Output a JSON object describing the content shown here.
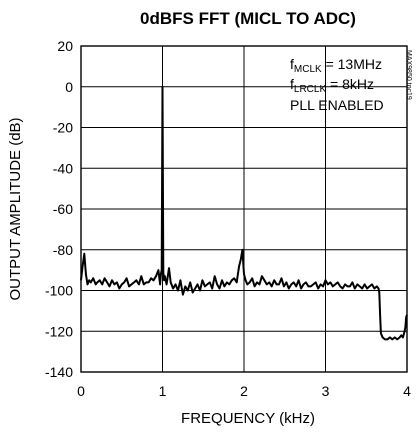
{
  "chart_data": {
    "type": "line",
    "title": "0dBFS FFT (MICL TO ADC)",
    "xlabel": "FREQUENCY (kHz)",
    "ylabel": "OUTPUT AMPLITUDE (dB)",
    "xlim": [
      0,
      4
    ],
    "ylim": [
      -140,
      20
    ],
    "xticks": [
      0,
      1,
      2,
      3,
      4
    ],
    "yticks": [
      20,
      0,
      -20,
      -40,
      -60,
      -80,
      -100,
      -120,
      -140
    ],
    "xtick_labels": [
      "0",
      "1",
      "2",
      "3",
      "4"
    ],
    "ytick_labels": [
      "20",
      "0",
      "-20",
      "-40",
      "-60",
      "-80",
      "-100",
      "-120",
      "-140"
    ],
    "grid": true,
    "annotations": {
      "line1_main": "f",
      "line1_sub": "MCLK",
      "line1_rest": " = 13MHz",
      "line2_main": "f",
      "line2_sub": "LRCLK",
      "line2_rest": " = 8kHz",
      "line3": "PLL ENABLED",
      "figure_code": "MAX9850 toc19"
    },
    "colors": {
      "line": "#000000",
      "grid": "#000000",
      "background": "#ffffff"
    },
    "series": [
      {
        "x": [
          0.0,
          0.02,
          0.04,
          0.06,
          0.08,
          0.1,
          0.12,
          0.15,
          0.18,
          0.2,
          0.23,
          0.26,
          0.29,
          0.32,
          0.35,
          0.38,
          0.41,
          0.44,
          0.47,
          0.5,
          0.53,
          0.56,
          0.59,
          0.62,
          0.65,
          0.68,
          0.71,
          0.74,
          0.77,
          0.8,
          0.83,
          0.86,
          0.89,
          0.92,
          0.95,
          0.97,
          0.98,
          0.99,
          1.0,
          1.01,
          1.02,
          1.03,
          1.05,
          1.08,
          1.1,
          1.13,
          1.16,
          1.19,
          1.22,
          1.25,
          1.28,
          1.31,
          1.34,
          1.37,
          1.4,
          1.43,
          1.46,
          1.49,
          1.52,
          1.55,
          1.58,
          1.61,
          1.64,
          1.67,
          1.7,
          1.73,
          1.76,
          1.79,
          1.82,
          1.85,
          1.88,
          1.91,
          1.94,
          1.96,
          1.98,
          2.0,
          2.02,
          2.04,
          2.07,
          2.1,
          2.13,
          2.16,
          2.19,
          2.22,
          2.25,
          2.28,
          2.31,
          2.34,
          2.37,
          2.4,
          2.43,
          2.46,
          2.49,
          2.52,
          2.55,
          2.58,
          2.61,
          2.64,
          2.67,
          2.7,
          2.73,
          2.76,
          2.79,
          2.82,
          2.85,
          2.88,
          2.91,
          2.94,
          2.97,
          3.0,
          3.03,
          3.06,
          3.09,
          3.12,
          3.15,
          3.18,
          3.21,
          3.24,
          3.27,
          3.3,
          3.33,
          3.36,
          3.39,
          3.42,
          3.45,
          3.48,
          3.51,
          3.54,
          3.57,
          3.6,
          3.63,
          3.65,
          3.66,
          3.67,
          3.68,
          3.7,
          3.73,
          3.76,
          3.79,
          3.82,
          3.85,
          3.88,
          3.91,
          3.93,
          3.95,
          3.97,
          3.98,
          3.99,
          4.0
        ],
        "y": [
          -95,
          -88,
          -82,
          -92,
          -97,
          -95,
          -96,
          -94,
          -97,
          -96,
          -95,
          -97,
          -94,
          -96,
          -98,
          -95,
          -97,
          -96,
          -99,
          -97,
          -96,
          -94,
          -98,
          -97,
          -96,
          -95,
          -97,
          -93,
          -97,
          -96,
          -96,
          -94,
          -95,
          -93,
          -90,
          -97,
          -92,
          -90,
          0,
          -91,
          -95,
          -93,
          -97,
          -89,
          -96,
          -99,
          -97,
          -100,
          -95,
          -102,
          -98,
          -100,
          -96,
          -101,
          -99,
          -97,
          -100,
          -95,
          -98,
          -97,
          -96,
          -99,
          -93,
          -97,
          -99,
          -95,
          -98,
          -96,
          -97,
          -95,
          -94,
          -96,
          -88,
          -85,
          -80,
          -92,
          -95,
          -97,
          -96,
          -94,
          -98,
          -96,
          -97,
          -93,
          -95,
          -97,
          -96,
          -98,
          -95,
          -97,
          -97,
          -94,
          -98,
          -96,
          -99,
          -97,
          -96,
          -98,
          -95,
          -99,
          -97,
          -96,
          -98,
          -98,
          -97,
          -96,
          -99,
          -97,
          -98,
          -95,
          -97,
          -96,
          -98,
          -97,
          -96,
          -98,
          -99,
          -97,
          -98,
          -98,
          -96,
          -99,
          -97,
          -98,
          -99,
          -97,
          -99,
          -98,
          -97,
          -99,
          -98,
          -99,
          -101,
          -112,
          -121,
          -123,
          -124,
          -124,
          -123,
          -124,
          -123,
          -124,
          -123,
          -122,
          -123,
          -120,
          -118,
          -113,
          -112
        ]
      }
    ],
    "peaks": [
      {
        "x": 0.03,
        "y": -82
      },
      {
        "x": 1.0,
        "y": 0
      },
      {
        "x": 1.08,
        "y": -89
      },
      {
        "x": 1.26,
        "y": -93
      },
      {
        "x": 1.98,
        "y": -80
      },
      {
        "x": 2.48,
        "y": -92
      },
      {
        "x": 2.95,
        "y": -91
      }
    ]
  }
}
